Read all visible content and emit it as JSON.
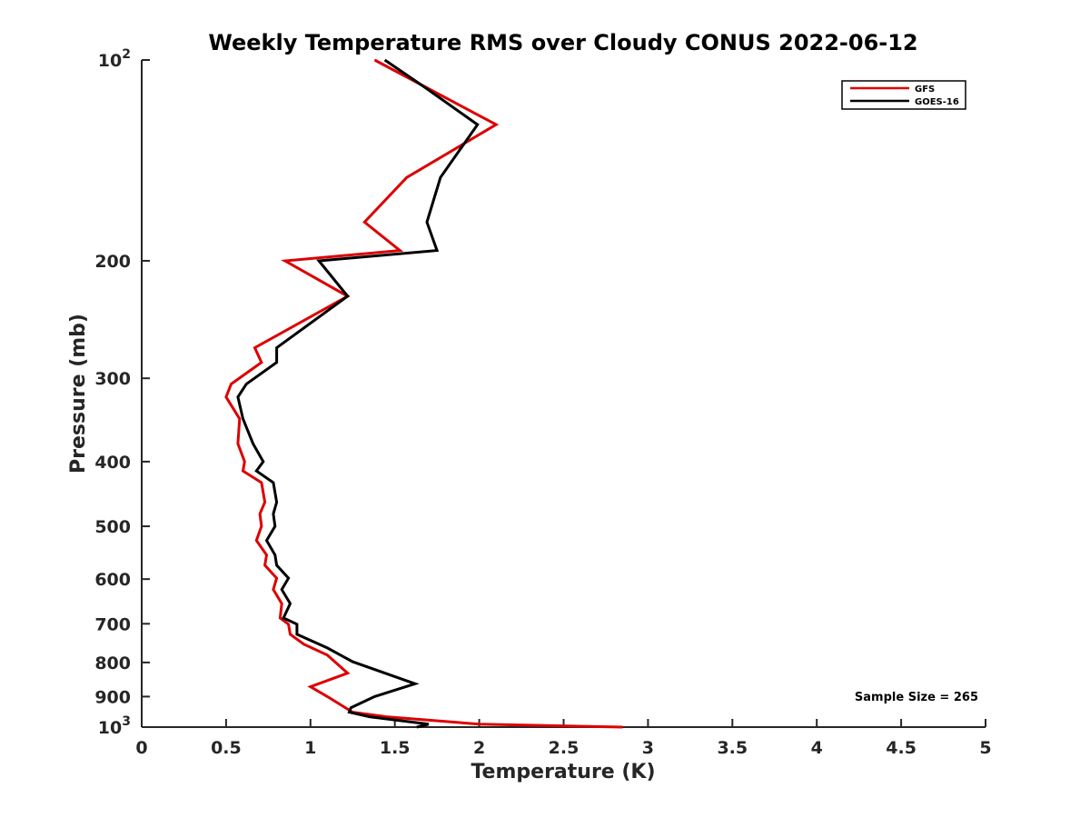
{
  "chart_data": {
    "type": "line",
    "title": "Weekly Temperature RMS over Cloudy CONUS 2022-06-12",
    "xlabel": "Temperature (K)",
    "ylabel": "Pressure (mb)",
    "xlim": [
      0,
      5
    ],
    "ylim": [
      100,
      1000
    ],
    "y_scale": "log",
    "y_direction": "reversed",
    "grid": false,
    "legend_position": "top-right",
    "x_ticks": [
      0,
      0.5,
      1,
      1.5,
      2,
      2.5,
      3,
      3.5,
      4,
      4.5,
      5
    ],
    "x_tick_labels": [
      "0",
      "0.5",
      "1",
      "1.5",
      "2",
      "2.5",
      "3",
      "3.5",
      "4",
      "4.5",
      "5"
    ],
    "y_ticks": [
      {
        "value": 100,
        "base": "10",
        "exp": "2"
      },
      {
        "value": 200,
        "label": "200"
      },
      {
        "value": 300,
        "label": "300"
      },
      {
        "value": 400,
        "label": "400"
      },
      {
        "value": 500,
        "label": "500"
      },
      {
        "value": 600,
        "label": "600"
      },
      {
        "value": 700,
        "label": "700"
      },
      {
        "value": 800,
        "label": "800"
      },
      {
        "value": 900,
        "label": "900"
      },
      {
        "value": 1000,
        "base": "10",
        "exp": "3"
      }
    ],
    "annotation": "Sample Size = 265",
    "series": [
      {
        "name": "GFS",
        "color": "#dd0000",
        "points": [
          [
            1.38,
            100
          ],
          [
            2.1,
            125
          ],
          [
            1.57,
            150
          ],
          [
            1.32,
            175
          ],
          [
            1.53,
            193
          ],
          [
            0.85,
            200
          ],
          [
            1.22,
            226
          ],
          [
            0.67,
            270
          ],
          [
            0.71,
            284
          ],
          [
            0.53,
            306
          ],
          [
            0.5,
            320
          ],
          [
            0.58,
            345
          ],
          [
            0.57,
            376
          ],
          [
            0.61,
            400
          ],
          [
            0.6,
            413
          ],
          [
            0.71,
            430
          ],
          [
            0.73,
            460
          ],
          [
            0.7,
            479
          ],
          [
            0.71,
            500
          ],
          [
            0.68,
            525
          ],
          [
            0.74,
            552
          ],
          [
            0.73,
            572
          ],
          [
            0.8,
            598
          ],
          [
            0.78,
            622
          ],
          [
            0.83,
            653
          ],
          [
            0.82,
            686
          ],
          [
            0.87,
            701
          ],
          [
            0.88,
            726
          ],
          [
            0.96,
            751
          ],
          [
            1.1,
            780
          ],
          [
            1.22,
            830
          ],
          [
            1.0,
            870
          ],
          [
            1.1,
            900
          ],
          [
            1.25,
            950
          ],
          [
            1.45,
            965
          ],
          [
            2.0,
            990
          ],
          [
            2.85,
            1000
          ]
        ]
      },
      {
        "name": "GOES-16",
        "color": "#000000",
        "points": [
          [
            1.44,
            100
          ],
          [
            1.68,
            110
          ],
          [
            1.99,
            125
          ],
          [
            1.77,
            150
          ],
          [
            1.69,
            175
          ],
          [
            1.75,
            193
          ],
          [
            1.05,
            200
          ],
          [
            1.22,
            226
          ],
          [
            0.8,
            270
          ],
          [
            0.8,
            284
          ],
          [
            0.62,
            306
          ],
          [
            0.57,
            320
          ],
          [
            0.6,
            345
          ],
          [
            0.66,
            376
          ],
          [
            0.72,
            400
          ],
          [
            0.68,
            413
          ],
          [
            0.78,
            430
          ],
          [
            0.8,
            460
          ],
          [
            0.78,
            479
          ],
          [
            0.79,
            500
          ],
          [
            0.74,
            525
          ],
          [
            0.79,
            552
          ],
          [
            0.8,
            572
          ],
          [
            0.87,
            598
          ],
          [
            0.83,
            622
          ],
          [
            0.88,
            653
          ],
          [
            0.84,
            686
          ],
          [
            0.92,
            701
          ],
          [
            0.92,
            726
          ],
          [
            1.1,
            761
          ],
          [
            1.25,
            798
          ],
          [
            1.62,
            861
          ],
          [
            1.38,
            900
          ],
          [
            1.24,
            935
          ],
          [
            1.23,
            950
          ],
          [
            1.35,
            965
          ],
          [
            1.7,
            990
          ],
          [
            1.63,
            1000
          ]
        ]
      }
    ]
  }
}
